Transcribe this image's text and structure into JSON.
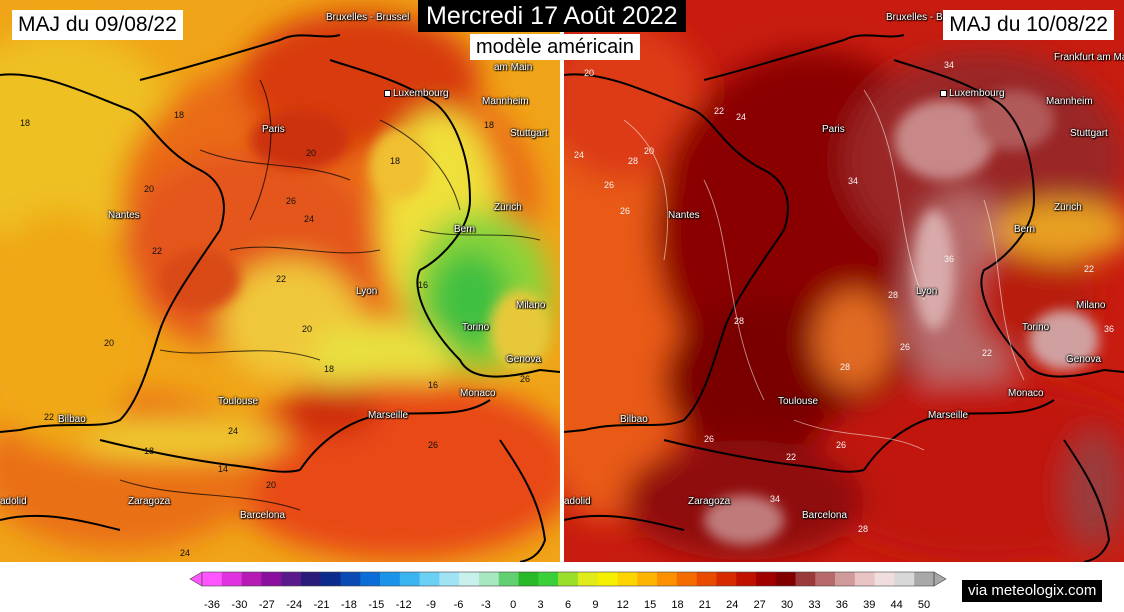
{
  "header": {
    "title": "Mercredi 17 Août 2022",
    "subtitle": "modèle américain"
  },
  "left_map": {
    "update_label": "MAJ du 09/08/22",
    "cities": [
      "Bruxelles - Brussel",
      "Luxembourg",
      "Paris",
      "Nantes",
      "Lyon",
      "Toulouse",
      "Marseille",
      "Monaco",
      "Genova",
      "Torino",
      "Milano",
      "Bern",
      "Zürich",
      "Mannheim",
      "Stuttgart",
      "am Main",
      "Bilbao",
      "Zaragoza",
      "Barcelona",
      "adolid"
    ],
    "isotherm_labels": [
      "18",
      "18",
      "20",
      "22",
      "24",
      "26",
      "18",
      "22",
      "20",
      "18",
      "16",
      "16",
      "26",
      "20",
      "22",
      "18",
      "14",
      "20",
      "24",
      "26",
      "20",
      "18",
      "24"
    ]
  },
  "right_map": {
    "update_label": "MAJ du 10/08/22",
    "cities": [
      "Bruxelles - Brussel",
      "Luxembourg",
      "Frankfurt am Main",
      "Mannheim",
      "Stuttgart",
      "Paris",
      "Nantes",
      "Lyon",
      "Toulouse",
      "Marseille",
      "Monaco",
      "Genova",
      "Torino",
      "Milano",
      "Bern",
      "Zürich",
      "Bilbao",
      "Zaragoza",
      "Barcelona",
      "adolid"
    ],
    "isotherm_labels": [
      "20",
      "22",
      "24",
      "24",
      "26",
      "26",
      "28",
      "20",
      "34",
      "34",
      "28",
      "28",
      "26",
      "28",
      "36",
      "22",
      "22",
      "36",
      "26",
      "22",
      "26",
      "34",
      "28"
    ]
  },
  "legend": {
    "ticks": [
      "-36",
      "-30",
      "-27",
      "-24",
      "-21",
      "-18",
      "-15",
      "-12",
      "-9",
      "-6",
      "-3",
      "0",
      "3",
      "6",
      "9",
      "12",
      "15",
      "18",
      "21",
      "24",
      "27",
      "30",
      "33",
      "36",
      "39",
      "44",
      "50"
    ],
    "colors": [
      "#ff55ff",
      "#e033e0",
      "#b51ab5",
      "#8a0f9e",
      "#5a1a8c",
      "#2a1a7a",
      "#0a2a8c",
      "#0a4ab5",
      "#0a6ed6",
      "#1a94e8",
      "#3ab4f0",
      "#6ad0f4",
      "#a0e4f4",
      "#c8f0ec",
      "#a8e8c0",
      "#60d070",
      "#28b828",
      "#3ad03a",
      "#9ae02a",
      "#e0ec1a",
      "#f4f000",
      "#fcd400",
      "#fcb400",
      "#fc9000",
      "#f46c00",
      "#e84a00",
      "#d82a00",
      "#c01000",
      "#a00000",
      "#800000",
      "#9a3a3a",
      "#b86a6a",
      "#d09a9a",
      "#e8c4c4",
      "#f0dede",
      "#d8d8d8",
      "#a8a8a8"
    ]
  },
  "credit": "via meteologix.com"
}
